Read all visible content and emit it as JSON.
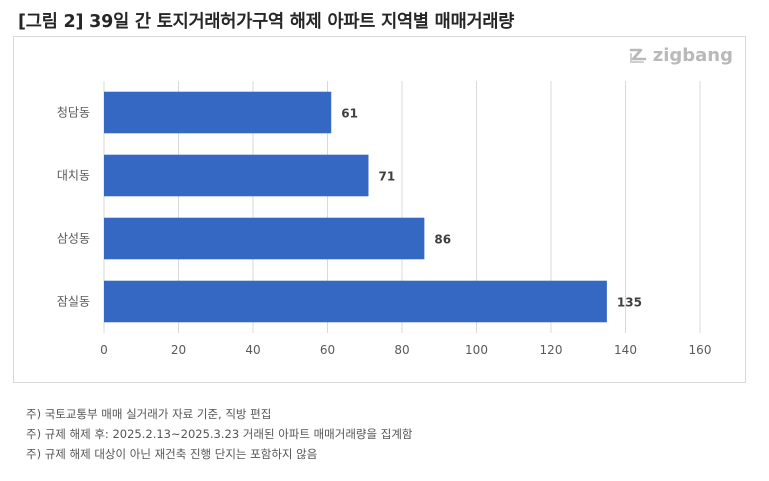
{
  "title": "[그림 2] 39일 간 토지거래허가구역 해제 아파트 지역별 매매거래량",
  "brand": {
    "name": "zigbang",
    "icon": "zigbang-logo-icon",
    "color": "#b9b9b9"
  },
  "chart_data": {
    "type": "bar",
    "orientation": "horizontal",
    "categories": [
      "청담동",
      "대치동",
      "삼성동",
      "잠실동"
    ],
    "values": [
      61,
      71,
      86,
      135
    ],
    "data_labels": [
      "61",
      "71",
      "86",
      "135"
    ],
    "xlim": [
      0,
      160
    ],
    "x_ticks": [
      "0",
      "20",
      "40",
      "60",
      "80",
      "100",
      "120",
      "140",
      "160"
    ],
    "grid": true,
    "bar_color": "#3568c2"
  },
  "notes": [
    "주) 국토교통부 매매 실거래가 자료 기준, 직방 편집",
    "주) 규제 해제 후: 2025.2.13~2025.3.23 거래된 아파트 매매거래량을 집계함",
    "주) 규제 해제 대상이 아닌 재건축 진행 단지는 포함하지 않음"
  ]
}
